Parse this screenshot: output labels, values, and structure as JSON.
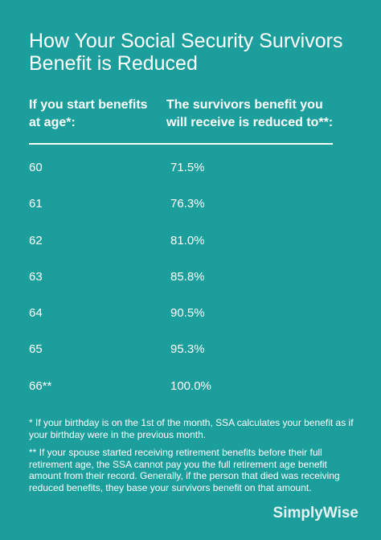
{
  "title": "How Your Social Security Survivors Benefit is Reduced",
  "table": {
    "col_age_header": "If you start benefits at age*:",
    "col_pct_header": "The survivors benefit you will receive is reduced to**:",
    "rows": [
      {
        "age": "60",
        "pct": "71.5%"
      },
      {
        "age": "61",
        "pct": "76.3%"
      },
      {
        "age": "62",
        "pct": "81.0%"
      },
      {
        "age": "63",
        "pct": "85.8%"
      },
      {
        "age": "64",
        "pct": "90.5%"
      },
      {
        "age": "65",
        "pct": "95.3%"
      },
      {
        "age": "66**",
        "pct": "100.0%"
      }
    ]
  },
  "notes": {
    "note1": "* If your birthday is on the 1st of the month, SSA calculates your benefit as if your birthday were in the previous month.",
    "note2": "** If your spouse started receiving retirement benefits before their full retirement age, the SSA cannot pay you the full retirement age benefit amount from their record. Generally, if the person that died was receiving reduced benefits, they base your survivors benefit on that amount."
  },
  "brand": "SimplyWise",
  "colors": {
    "background": "#1c9e9c",
    "text": "#ffffff"
  }
}
